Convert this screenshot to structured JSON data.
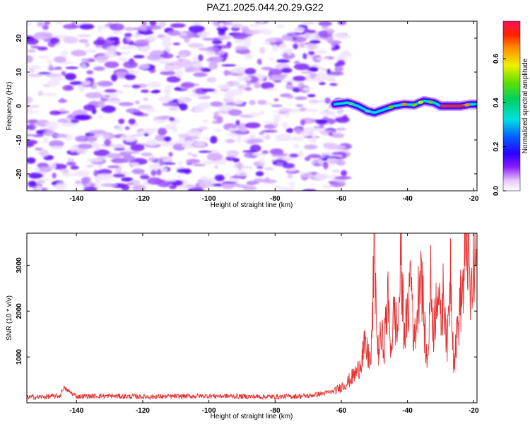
{
  "title": "PAZ1.2025.044.20.29.G22",
  "chart_data": [
    {
      "type": "heatmap",
      "xlabel": "Height of straight line (km)",
      "ylabel": "Frequency (Hz)",
      "xlim": [
        -155,
        -19
      ],
      "ylim": [
        -25,
        25
      ],
      "xticks": [
        -140,
        -120,
        -100,
        -80,
        -60,
        -40,
        -20
      ],
      "yticks": [
        -20,
        -10,
        0,
        10,
        20
      ],
      "noise_region_x": [
        -155,
        -60
      ],
      "signal_band": {
        "x": [
          -62,
          -58,
          -55,
          -52,
          -50,
          -47,
          -44,
          -41,
          -38,
          -35,
          -32,
          -30,
          -27,
          -24,
          -21,
          -19
        ],
        "frequency": [
          0.5,
          1.0,
          0,
          -1.5,
          -2.0,
          -1.0,
          0,
          0.5,
          0.3,
          1.5,
          1.0,
          0,
          0,
          0,
          0.5,
          0.5
        ]
      },
      "colorbar": {
        "label": "Normalized spectral amplitude",
        "range": [
          0,
          0.77
        ],
        "ticks": [
          0.0,
          0.2,
          0.4,
          0.6
        ]
      }
    },
    {
      "type": "line",
      "xlabel": "Height of straight line (km)",
      "ylabel": "SNR (10 * v/v)",
      "xlim": [
        -155,
        -19
      ],
      "ylim": [
        0,
        3700
      ],
      "xticks": [
        -140,
        -120,
        -100,
        -80,
        -60,
        -40,
        -20
      ],
      "yticks": [
        1000,
        2000,
        3000
      ],
      "series": [
        {
          "color": "#e83030",
          "x": [
            -155,
            -150,
            -145,
            -144,
            -140,
            -130,
            -120,
            -110,
            -100,
            -90,
            -80,
            -70,
            -62,
            -58,
            -55,
            -53,
            -51,
            -50,
            -49,
            -48,
            -47,
            -46,
            -45,
            -44,
            -43,
            -42,
            -41,
            -40,
            -39,
            -38,
            -37,
            -36,
            -35,
            -34,
            -33,
            -32,
            -31,
            -30,
            -29,
            -28,
            -27,
            -26,
            -25,
            -24,
            -23,
            -22,
            -21,
            -20,
            -19
          ],
          "y": [
            120,
            130,
            150,
            330,
            140,
            150,
            130,
            140,
            150,
            140,
            130,
            150,
            250,
            450,
            700,
            1200,
            900,
            3400,
            1100,
            1400,
            1300,
            2300,
            1200,
            2000,
            1500,
            3100,
            1600,
            1800,
            3000,
            1300,
            2000,
            3300,
            1700,
            800,
            2600,
            1500,
            2800,
            1700,
            2500,
            1200,
            3000,
            900,
            1500,
            2200,
            2600,
            3750,
            2200,
            2800,
            3200
          ]
        }
      ]
    }
  ]
}
